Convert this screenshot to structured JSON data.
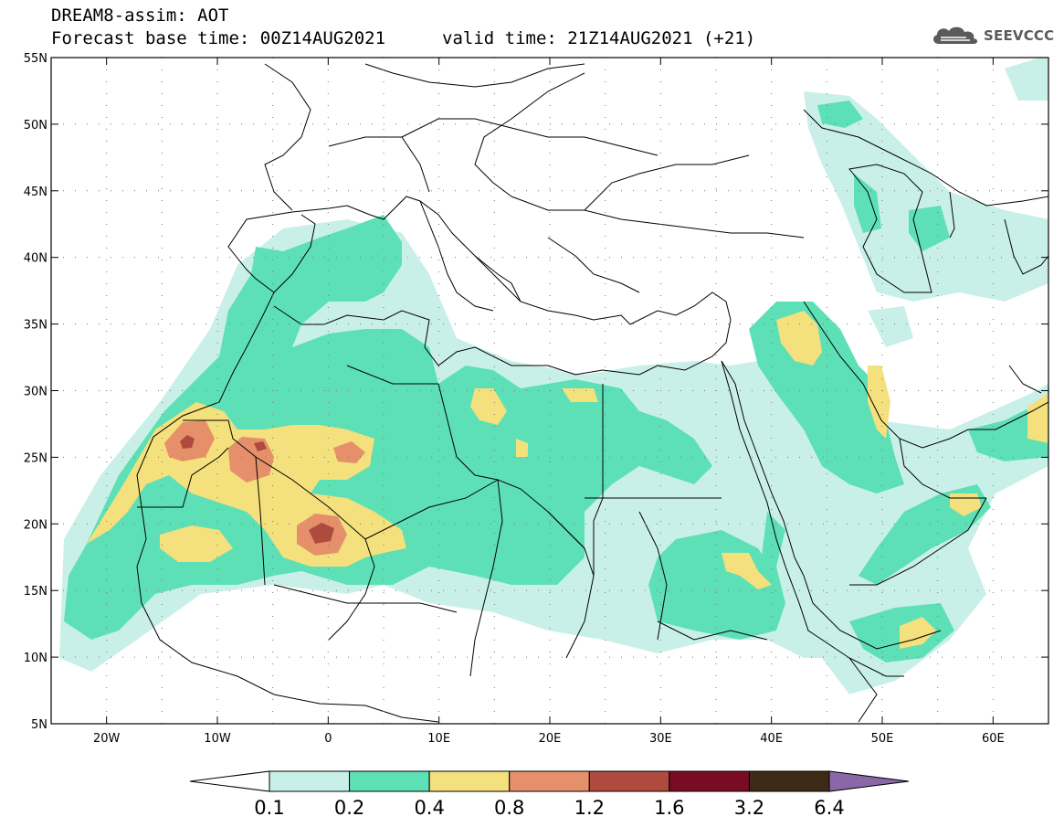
{
  "header": {
    "title": "DREAM8-assim: AOT",
    "base_time": "Forecast base time: 00Z14AUG2021",
    "valid_time": "valid time: 21Z14AUG2021 (+21)"
  },
  "brand": {
    "name": "SEEVCCC",
    "icon": "cloud-icon"
  },
  "map": {
    "lon_range": [
      -25,
      65
    ],
    "lat_range": [
      5,
      55
    ],
    "x_ticks": [
      {
        "lon": -20,
        "label": "20W"
      },
      {
        "lon": -10,
        "label": "10W"
      },
      {
        "lon": 0,
        "label": "0"
      },
      {
        "lon": 10,
        "label": "10E"
      },
      {
        "lon": 20,
        "label": "20E"
      },
      {
        "lon": 30,
        "label": "30E"
      },
      {
        "lon": 40,
        "label": "40E"
      },
      {
        "lon": 50,
        "label": "50E"
      },
      {
        "lon": 60,
        "label": "60E"
      }
    ],
    "y_ticks": [
      {
        "lat": 55,
        "label": "55N"
      },
      {
        "lat": 50,
        "label": "50N"
      },
      {
        "lat": 45,
        "label": "45N"
      },
      {
        "lat": 40,
        "label": "40N"
      },
      {
        "lat": 35,
        "label": "35N"
      },
      {
        "lat": 30,
        "label": "30N"
      },
      {
        "lat": 25,
        "label": "25N"
      },
      {
        "lat": 20,
        "label": "20N"
      },
      {
        "lat": 15,
        "label": "15N"
      },
      {
        "lat": 10,
        "label": "10N"
      },
      {
        "lat": 5,
        "label": "5N"
      }
    ],
    "grid": "dotted every 5 degrees"
  },
  "colorbar": {
    "colors": [
      "#ffffff",
      "#c9f0e8",
      "#5ee0b6",
      "#f4e07c",
      "#e5906a",
      "#ae4a3e",
      "#7a0b24",
      "#3f2a17",
      "#8a68a8"
    ],
    "labels": [
      "0.1",
      "0.2",
      "0.4",
      "0.8",
      "1.2",
      "1.6",
      "3.2",
      "6.4"
    ]
  }
}
